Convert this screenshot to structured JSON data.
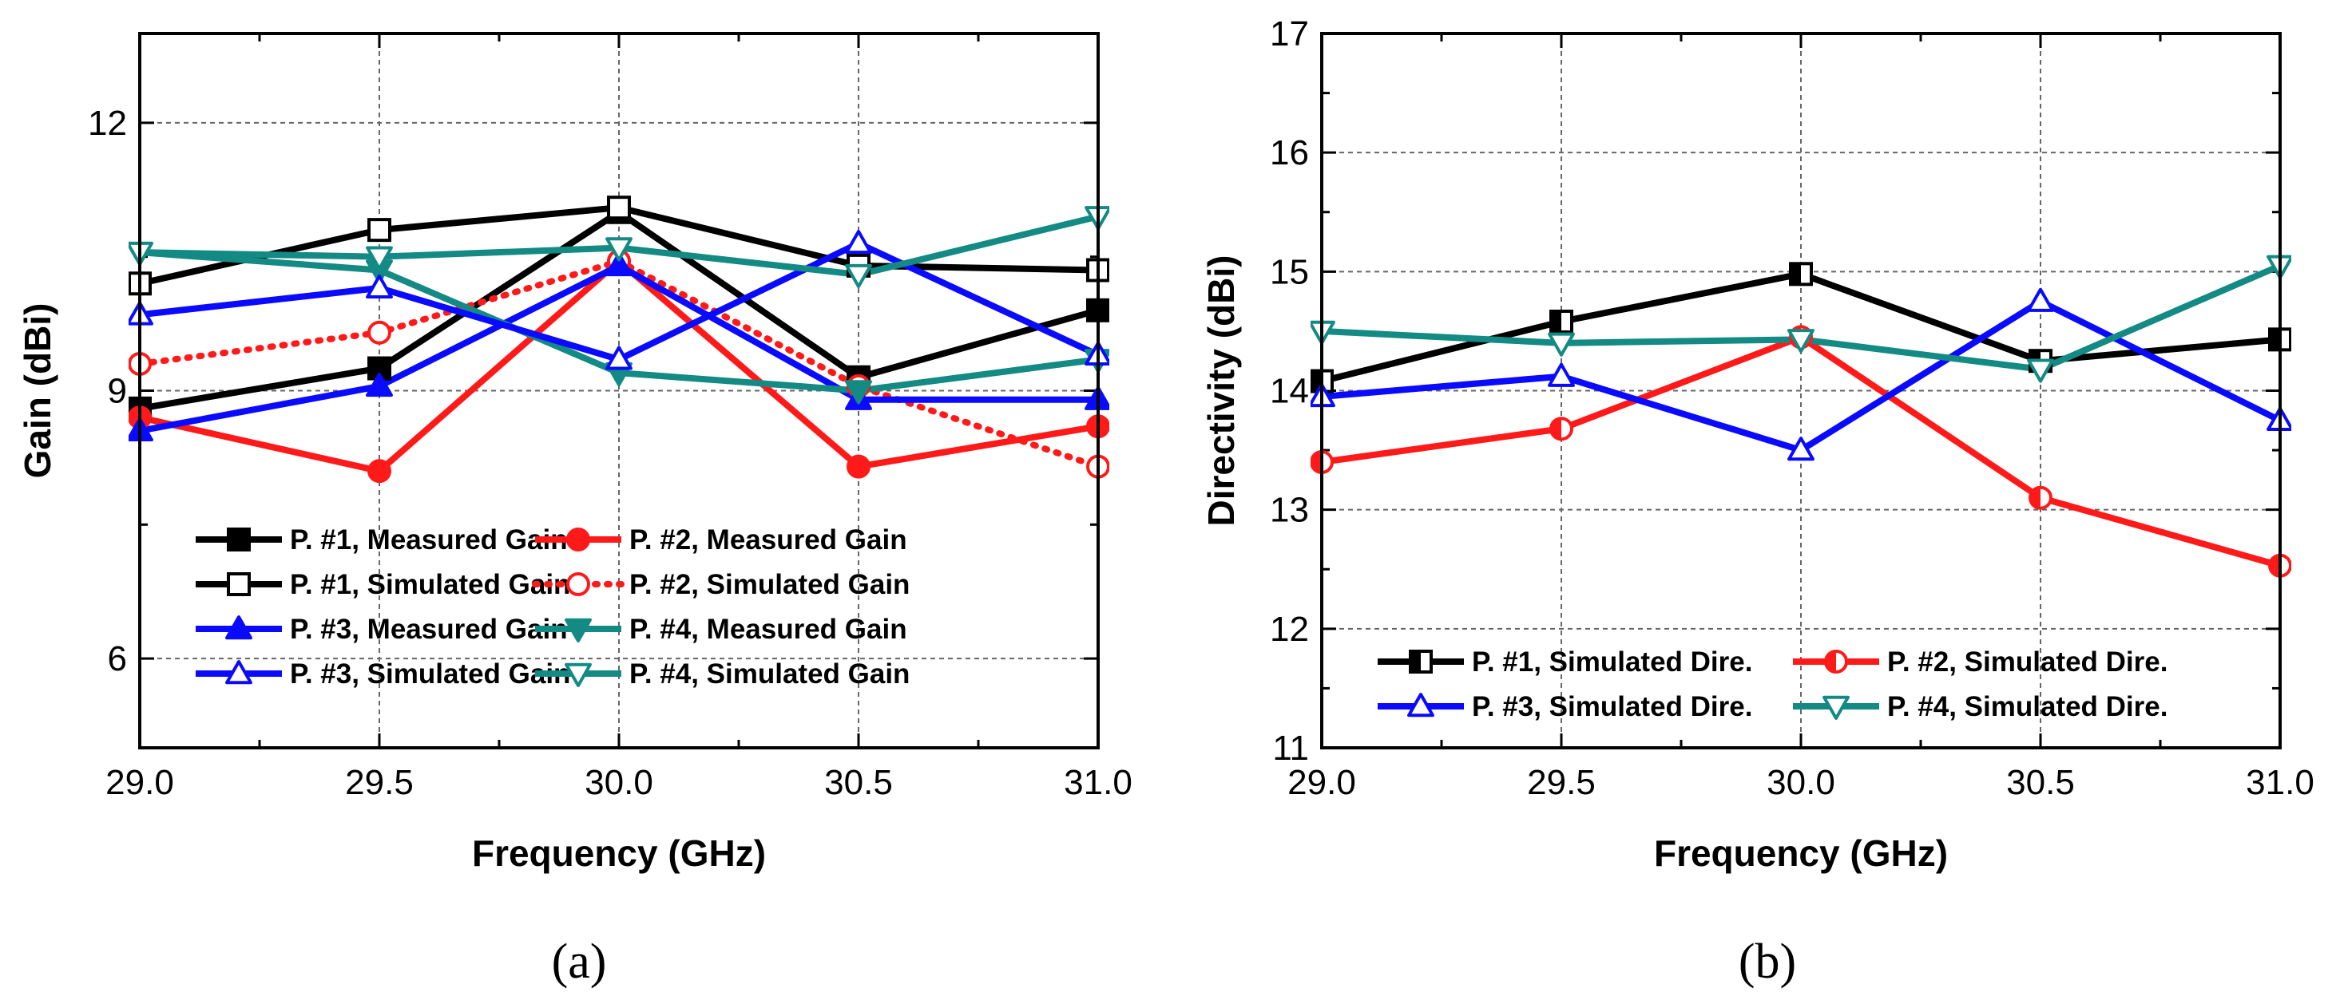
{
  "panels": [
    {
      "label": "(a)",
      "chart_data": {
        "type": "line",
        "title": "",
        "xlabel": "Frequency (GHz)",
        "ylabel": "Gain (dBi)",
        "xlim": [
          29.0,
          31.0
        ],
        "ylim": [
          5.0,
          13.0
        ],
        "xticks": [
          "29.0",
          "29.5",
          "30.0",
          "30.5",
          "31.0"
        ],
        "yticks": [
          "6",
          "9",
          "12"
        ],
        "grid": true,
        "legend_position": "bottom",
        "x": [
          29.0,
          29.5,
          30.0,
          30.5,
          31.0
        ],
        "series": [
          {
            "name": "P. #1, Measured Gain",
            "color": "#000000",
            "marker": "square",
            "filled": true,
            "dashed": false,
            "values": [
              8.8,
              9.25,
              11.0,
              9.15,
              9.9
            ]
          },
          {
            "name": "P. #2, Measured Gain",
            "color": "#ff1a1a",
            "marker": "circle",
            "filled": true,
            "dashed": false,
            "values": [
              8.7,
              8.1,
              10.45,
              8.15,
              8.6
            ]
          },
          {
            "name": "P. #1, Simulated Gain",
            "color": "#000000",
            "marker": "square",
            "filled": false,
            "dashed": false,
            "values": [
              10.2,
              10.8,
              11.05,
              10.4,
              10.35
            ]
          },
          {
            "name": "P. #2, Simulated Gain",
            "color": "#ff1a1a",
            "marker": "circle",
            "filled": false,
            "dashed": true,
            "values": [
              9.3,
              9.65,
              10.45,
              9.05,
              8.15
            ]
          },
          {
            "name": "P. #3, Measured Gain",
            "color": "#0a0aff",
            "marker": "triangle-up",
            "filled": true,
            "dashed": false,
            "values": [
              8.55,
              9.05,
              10.4,
              8.9,
              8.9
            ]
          },
          {
            "name": "P. #4, Measured Gain",
            "color": "#138a84",
            "marker": "triangle-down",
            "filled": true,
            "dashed": false,
            "values": [
              10.55,
              10.35,
              9.2,
              9.0,
              9.35
            ]
          },
          {
            "name": "P. #3, Simulated Gain",
            "color": "#0a0aff",
            "marker": "triangle-up",
            "filled": false,
            "dashed": false,
            "values": [
              9.85,
              10.15,
              9.35,
              10.65,
              9.4
            ]
          },
          {
            "name": "P. #4, Simulated Gain",
            "color": "#138a84",
            "marker": "triangle-down",
            "filled": false,
            "dashed": false,
            "values": [
              10.55,
              10.5,
              10.6,
              10.3,
              10.95
            ]
          }
        ]
      }
    },
    {
      "label": "(b)",
      "chart_data": {
        "type": "line",
        "title": "",
        "xlabel": "Frequency (GHz)",
        "ylabel": "Directivity (dBi)",
        "xlim": [
          29.0,
          31.0
        ],
        "ylim": [
          11.0,
          17.0
        ],
        "xticks": [
          "29.0",
          "29.5",
          "30.0",
          "30.5",
          "31.0"
        ],
        "yticks": [
          "11",
          "12",
          "13",
          "14",
          "15",
          "16",
          "17"
        ],
        "grid": true,
        "legend_position": "bottom",
        "x": [
          29.0,
          29.5,
          30.0,
          30.5,
          31.0
        ],
        "series": [
          {
            "name": "P. #1, Simulated Dire.",
            "color": "#000000",
            "marker": "half-square",
            "filled": false,
            "dashed": false,
            "values": [
              14.08,
              14.58,
              14.98,
              14.25,
              14.43
            ]
          },
          {
            "name": "P. #2, Simulated Dire.",
            "color": "#ff1a1a",
            "marker": "half-circle",
            "filled": false,
            "dashed": false,
            "values": [
              13.4,
              13.68,
              14.45,
              13.1,
              12.53
            ]
          },
          {
            "name": "P. #3, Simulated Dire.",
            "color": "#0a0aff",
            "marker": "triangle-up",
            "filled": false,
            "dashed": false,
            "values": [
              13.95,
              14.12,
              13.5,
              14.75,
              13.75
            ]
          },
          {
            "name": "P. #4, Simulated Dire.",
            "color": "#138a84",
            "marker": "triangle-down",
            "filled": false,
            "dashed": false,
            "values": [
              14.5,
              14.4,
              14.43,
              14.18,
              15.05
            ]
          }
        ]
      }
    }
  ]
}
